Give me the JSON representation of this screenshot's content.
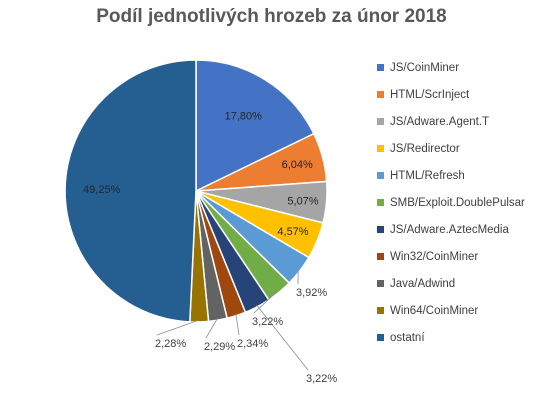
{
  "chart_data": {
    "type": "pie",
    "title": "Podíl jednotlivých hrozeb za únor 2018",
    "legend_position": "right",
    "slices": [
      {
        "name": "JS/CoinMiner",
        "value": 17.8,
        "label": "17,80%",
        "color": "#4472C4"
      },
      {
        "name": "HTML/ScrInject",
        "value": 6.04,
        "label": "6,04%",
        "color": "#ED7D31"
      },
      {
        "name": "JS/Adware.Agent.T",
        "value": 5.07,
        "label": "5,07%",
        "color": "#A5A5A5"
      },
      {
        "name": "JS/Redirector",
        "value": 4.57,
        "label": "4,57%",
        "color": "#FFC000"
      },
      {
        "name": "HTML/Refresh",
        "value": 3.92,
        "label": "3,92%",
        "color": "#5B9BD5"
      },
      {
        "name": "SMB/Exploit.DoublePulsar",
        "value": 3.22,
        "label": "3,22%",
        "color": "#70AD47"
      },
      {
        "name": "JS/Adware.AztecMedia",
        "value": 3.22,
        "label": "3,22%",
        "color": "#264478"
      },
      {
        "name": "Win32/CoinMiner",
        "value": 2.34,
        "label": "2,34%",
        "color": "#9E480E"
      },
      {
        "name": "Java/Adwind",
        "value": 2.29,
        "label": "2,29%",
        "color": "#636363"
      },
      {
        "name": "Win64/CoinMiner",
        "value": 2.28,
        "label": "2,28%",
        "color": "#997300"
      },
      {
        "name": "ostatní",
        "value": 49.25,
        "label": "49,25%",
        "color": "#255E91"
      }
    ]
  }
}
